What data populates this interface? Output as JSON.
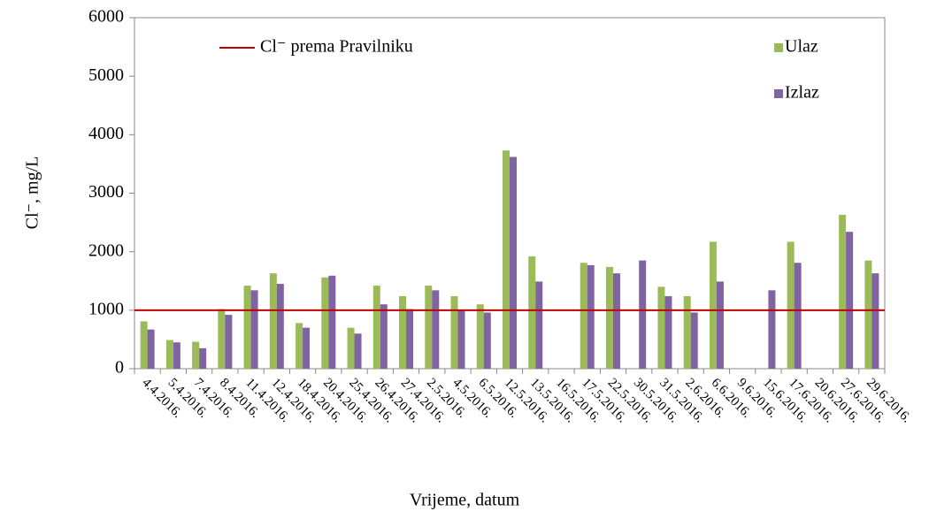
{
  "chart_data": {
    "type": "bar",
    "categories": [
      "4.4.2016.",
      "5.4.2016.",
      "7.4.2016.",
      "8.4.2016.",
      "11.4.2016.",
      "12.4.2016.",
      "18.4.2016.",
      "20.4.2016.",
      "25.4.2016.",
      "26.4.2016.",
      "27.4.2016.",
      "2.5.2016.",
      "4.5.2016.",
      "6.5.2016.",
      "12.5.2016.",
      "13.5.2016.",
      "16.5.2016.",
      "17.5.2016.",
      "22.5.2016.",
      "30.5.2016.",
      "31.5.2016.",
      "2.6.2016.",
      "6.6.2016.",
      "9.6.2016.",
      "15.6.2016.",
      "17.6.2016.",
      "20.6.2016.",
      "27.6.2016.",
      "29.6.2016."
    ],
    "series": [
      {
        "name": "Ulaz",
        "color": "#9bbb59",
        "values": [
          810,
          490,
          460,
          1020,
          1420,
          1630,
          780,
          1560,
          700,
          1420,
          1240,
          1420,
          1240,
          1100,
          3730,
          1920,
          null,
          1810,
          1740,
          null,
          1400,
          1240,
          2170,
          null,
          null,
          2170,
          null,
          2630,
          1850
        ]
      },
      {
        "name": "Izlaz",
        "color": "#8064a2",
        "values": [
          670,
          450,
          350,
          920,
          1340,
          1450,
          700,
          1590,
          600,
          1100,
          1020,
          1340,
          1000,
          960,
          3620,
          1490,
          null,
          1770,
          1630,
          1850,
          1240,
          960,
          1490,
          null,
          1340,
          1810,
          null,
          2340,
          1630
        ]
      }
    ],
    "reference_line": {
      "name": "Cl⁻ prema Pravilniku",
      "value": 1000,
      "color": "#c00000"
    },
    "xlabel": "Vrijeme, datum",
    "ylabel": "Cl⁻, mg/L",
    "ylim": [
      0,
      6000
    ],
    "yticks": [
      0,
      1000,
      2000,
      3000,
      4000,
      5000,
      6000
    ],
    "legend": "upper right"
  }
}
